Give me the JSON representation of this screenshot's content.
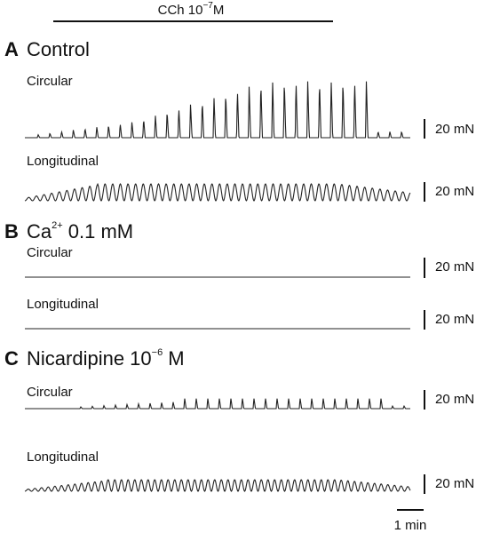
{
  "header": {
    "drug": "CCh 10",
    "drug_exponent": "−7",
    "drug_unit": "M"
  },
  "panels": [
    {
      "letter": "A",
      "title": "Control",
      "traces": [
        {
          "label": "Circular",
          "scale": "20 mN"
        },
        {
          "label": "Longitudinal",
          "scale": "20 mN"
        }
      ]
    },
    {
      "letter": "B",
      "title": "Ca",
      "title_superscript": "2+",
      "title_rest": " 0.1 mM",
      "traces": [
        {
          "label": "Circular",
          "scale": "20 mN"
        },
        {
          "label": "Longitudinal",
          "scale": "20 mN"
        }
      ]
    },
    {
      "letter": "C",
      "title": "Nicardipine 10",
      "title_superscript": "−6",
      "title_rest": " M",
      "traces": [
        {
          "label": "Circular",
          "scale": "20 mN"
        },
        {
          "label": "Longitudinal",
          "scale": "20 mN"
        }
      ]
    }
  ],
  "time_scale": "1 min"
}
